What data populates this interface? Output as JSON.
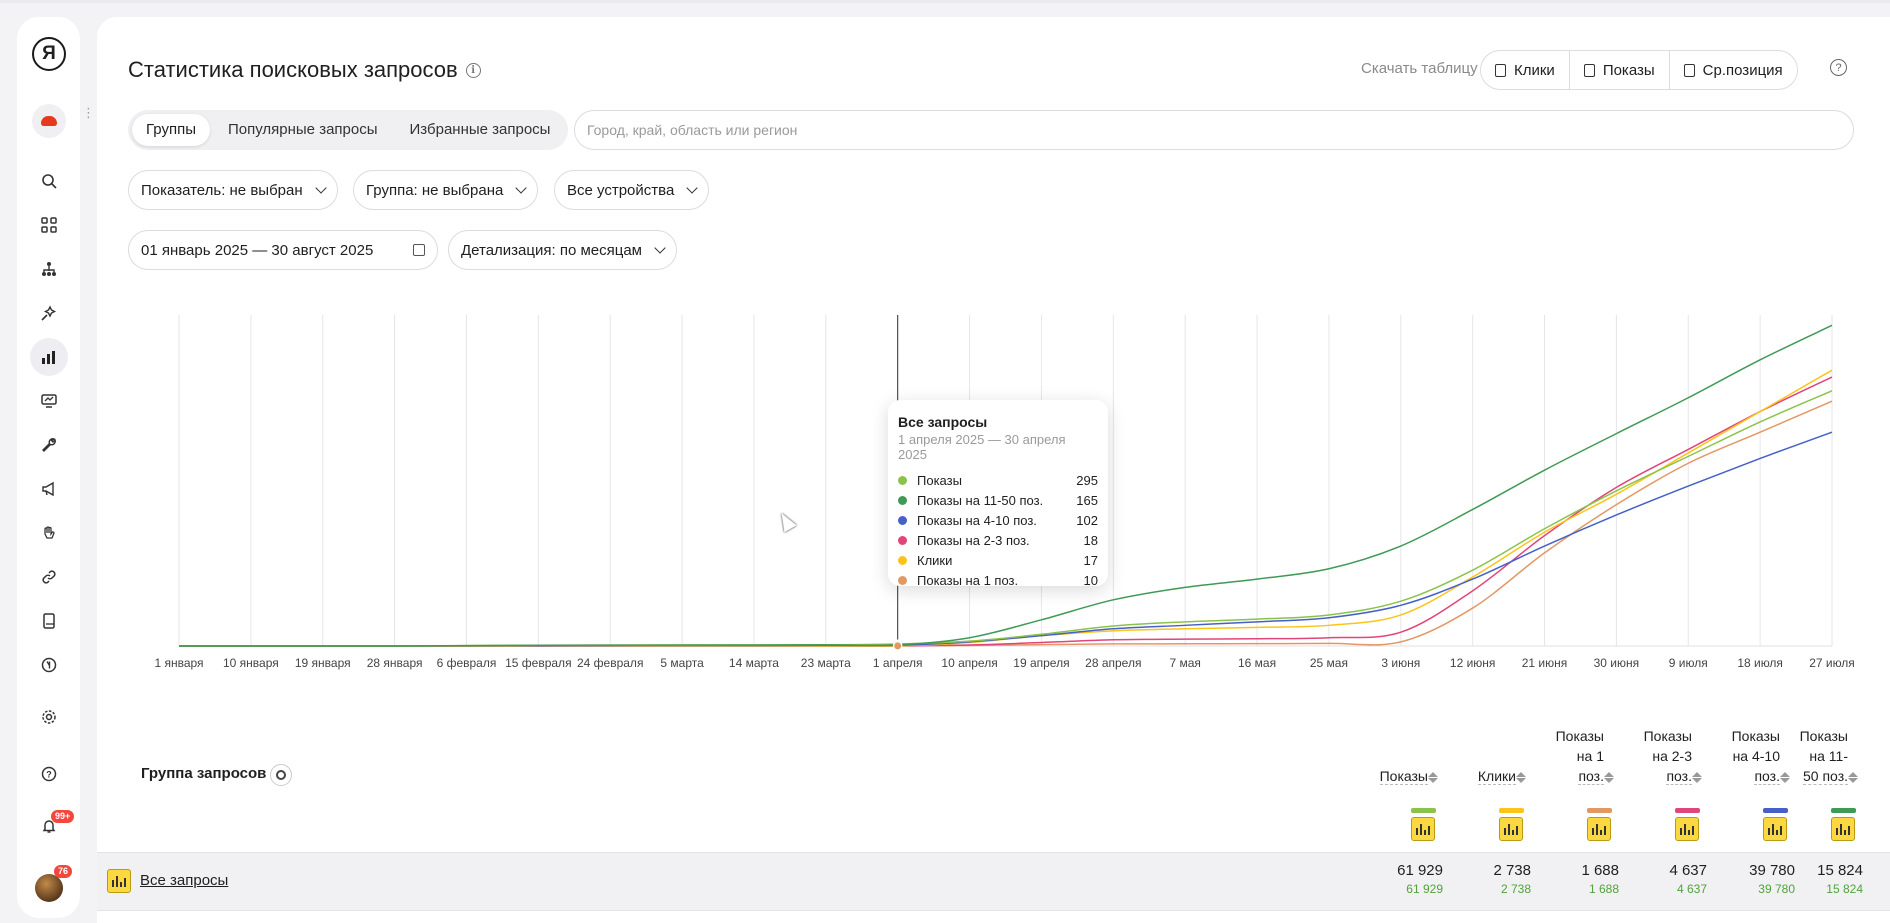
{
  "sidebar": {
    "logo": "Я",
    "notifications_badge": "99+",
    "avatar_badge": "76",
    "icons": [
      "search-icon",
      "apps-icon",
      "structure-icon",
      "magic-icon",
      "statistics-icon",
      "monitor-icon",
      "wrench-icon",
      "megaphone-icon",
      "hand-icon",
      "link-icon",
      "book-icon",
      "yandex-circle-icon",
      "gear-icon",
      "help-icon",
      "bell-icon"
    ]
  },
  "header": {
    "title": "Статистика поисковых запросов",
    "download_label": "Скачать таблицу",
    "download_buttons": [
      "Клики",
      "Показы",
      "Ср.позиция"
    ]
  },
  "tabs": [
    {
      "label": "Группы",
      "active": true
    },
    {
      "label": "Популярные запросы",
      "active": false
    },
    {
      "label": "Избранные запросы",
      "active": false
    }
  ],
  "region": {
    "placeholder": "Город, край, область или регион"
  },
  "filters": {
    "indicator": "Показатель: не выбран",
    "group": "Группа: не выбрана",
    "devices": "Все устройства",
    "date_range": "01 январь 2025 — 30 август 2025",
    "detail": "Детализация: по месяцам"
  },
  "chart_data": {
    "type": "line",
    "x": [
      "1 января",
      "10 января",
      "19 января",
      "28 января",
      "6 февраля",
      "15 февраля",
      "24 февраля",
      "5 марта",
      "14 марта",
      "23 марта",
      "1 апреля",
      "10 апреля",
      "19 апреля",
      "28 апреля",
      "7 мая",
      "16 мая",
      "25 мая",
      "3 июня",
      "12 июня",
      "21 июня",
      "30 июня",
      "9 июля",
      "18 июля",
      "27 июля"
    ],
    "series": [
      {
        "name": "Показы",
        "color": "#8bc34a",
        "values": [
          0,
          0,
          0,
          5,
          50,
          100,
          120,
          130,
          150,
          175,
          295,
          700,
          1700,
          2900,
          3500,
          3900,
          4500,
          6500,
          11000,
          17000,
          22500,
          27500,
          32500,
          37000
        ]
      },
      {
        "name": "Показы на 11-50 поз.",
        "color": "#3f9a55",
        "values": [
          0,
          0,
          0,
          5,
          60,
          110,
          130,
          140,
          150,
          160,
          165,
          1200,
          3800,
          6700,
          8500,
          9700,
          11200,
          14500,
          19800,
          25500,
          30800,
          36000,
          41500,
          46500
        ]
      },
      {
        "name": "Показы на 4-10 поз.",
        "color": "#4661c6",
        "values": [
          0,
          0,
          0,
          0,
          20,
          40,
          60,
          70,
          80,
          90,
          102,
          600,
          1500,
          2500,
          3000,
          3500,
          4100,
          5900,
          9700,
          14500,
          19000,
          23200,
          27200,
          31000
        ]
      },
      {
        "name": "Показы на 2-3 поз.",
        "color": "#e0457b",
        "values": [
          0,
          0,
          0,
          0,
          5,
          8,
          10,
          12,
          14,
          16,
          18,
          150,
          500,
          900,
          1000,
          1050,
          1200,
          2000,
          8000,
          16000,
          23000,
          28500,
          34000,
          39000
        ]
      },
      {
        "name": "Клики",
        "color": "#fcc419",
        "values": [
          0,
          0,
          0,
          0,
          5,
          8,
          10,
          12,
          14,
          16,
          17,
          500,
          1500,
          2200,
          2500,
          2700,
          3000,
          4500,
          10000,
          16500,
          22000,
          28000,
          34000,
          40000
        ]
      },
      {
        "name": "Показы на 1 поз.",
        "color": "#e39864",
        "values": [
          0,
          0,
          0,
          0,
          3,
          5,
          6,
          7,
          8,
          9,
          10,
          80,
          200,
          300,
          320,
          340,
          380,
          600,
          5500,
          13500,
          20500,
          26500,
          31000,
          35500
        ]
      }
    ],
    "ylim": [
      0,
      48000
    ],
    "grid": true,
    "legend": "none",
    "hover_index": 10
  },
  "tooltip": {
    "title": "Все запросы",
    "subtitle": "1 апреля 2025 — 30 апреля 2025",
    "rows": [
      {
        "name": "Показы",
        "value": "295",
        "color": "#8bc34a"
      },
      {
        "name": "Показы на 11-50 поз.",
        "value": "165",
        "color": "#3f9a55"
      },
      {
        "name": "Показы на 4-10 поз.",
        "value": "102",
        "color": "#4661c6"
      },
      {
        "name": "Показы на 2-3 поз.",
        "value": "18",
        "color": "#e0457b"
      },
      {
        "name": "Клики",
        "value": "17",
        "color": "#fcc419"
      },
      {
        "name": "Показы на 1 поз.",
        "value": "10",
        "color": "#e39864"
      }
    ]
  },
  "table": {
    "group_header": "Группа запросов",
    "columns": [
      {
        "l1": "Показы",
        "l2": "",
        "l3": "",
        "color": "#8bc34a"
      },
      {
        "l1": "Клики",
        "l2": "",
        "l3": "",
        "color": "#fcc419"
      },
      {
        "l1": "Показы",
        "l2": "на 1",
        "l3": "поз.",
        "color": "#e39864"
      },
      {
        "l1": "Показы",
        "l2": "на 2-3",
        "l3": "поз.",
        "color": "#e0457b"
      },
      {
        "l1": "Показы",
        "l2": "на 4-10",
        "l3": "поз.",
        "color": "#4661c6"
      },
      {
        "l1": "Показы",
        "l2": "на 11-",
        "l3": "50 поз.",
        "color": "#3f9a55"
      }
    ],
    "rows": [
      {
        "label": "Все запросы",
        "values": [
          "61 929",
          "2 738",
          "1 688",
          "4 637",
          "39 780",
          "15 824"
        ],
        "subvalues": [
          "61 929",
          "2 738",
          "1 688",
          "4 637",
          "39 780",
          "15 824"
        ]
      }
    ]
  }
}
